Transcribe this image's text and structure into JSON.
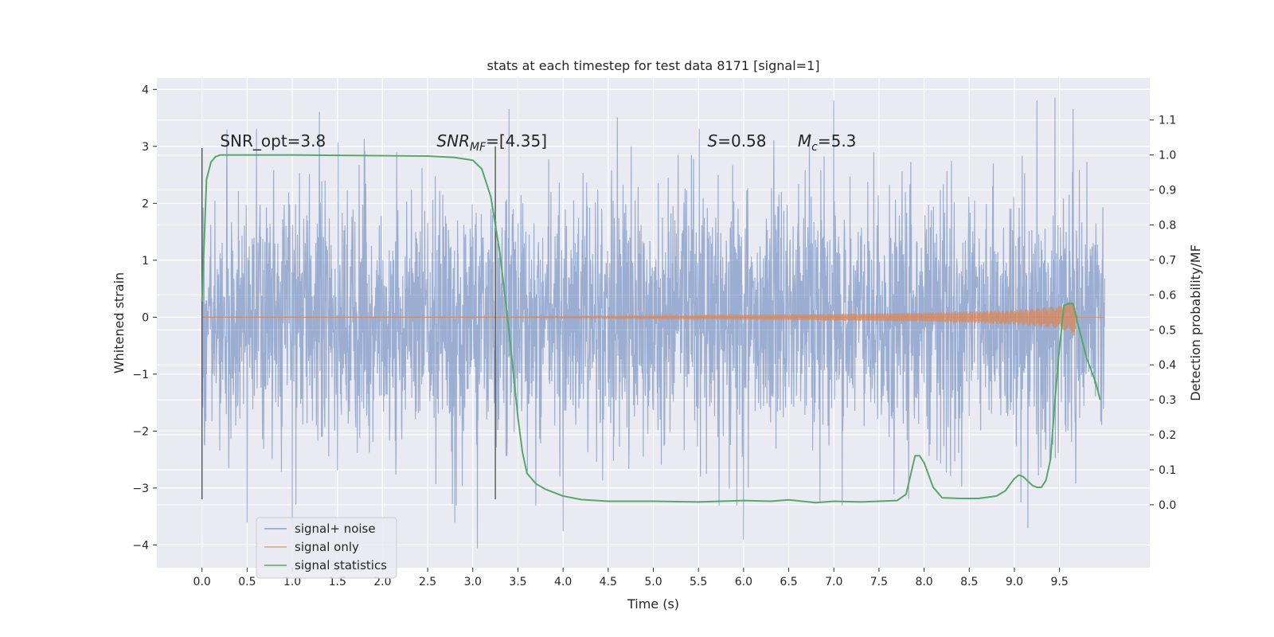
{
  "figure": {
    "background": "#ffffff",
    "axes_background": "#eaeaf2",
    "grid_color": "#ffffff"
  },
  "chart_data": {
    "type": "line",
    "title": "stats at each timestep for test data 8171 [signal=1]",
    "xlabel": "Time (s)",
    "ylabel": "Whitened strain",
    "y2label": "Detection probability/MF",
    "xlim": [
      -0.5,
      10.5
    ],
    "ylim": [
      -4.4,
      4.2
    ],
    "y2lim": [
      -0.18,
      1.22
    ],
    "xticks": [
      0.0,
      0.5,
      1.0,
      1.5,
      2.0,
      2.5,
      3.0,
      3.5,
      4.0,
      4.5,
      5.0,
      5.5,
      6.0,
      6.5,
      7.0,
      7.5,
      8.0,
      8.5,
      9.0,
      9.5
    ],
    "yticks": [
      -4,
      -3,
      -2,
      -1,
      0,
      1,
      2,
      3,
      4
    ],
    "y2ticks": [
      0.0,
      0.1,
      0.2,
      0.3,
      0.4,
      0.5,
      0.6,
      0.7,
      0.8,
      0.9,
      1.0,
      1.1
    ],
    "grid": true,
    "legend_position": "lower-left",
    "annotations": [
      {
        "text": "SNR_opt=3.8",
        "x": 0.2,
        "y": 3.0
      },
      {
        "text_main": "SNR",
        "text_sub": "MF",
        "text_rest": "=[4.35]",
        "x": 2.6,
        "y": 3.0
      },
      {
        "text_main": "S",
        "text_rest": "=0.58",
        "x": 5.6,
        "y": 3.0
      },
      {
        "text_main": "M",
        "text_sub": "c",
        "text_rest": "=5.3",
        "x": 6.6,
        "y": 3.0
      }
    ],
    "vlines": [
      {
        "x": 0.0,
        "ymin": -3.2,
        "ymax": 2.97
      },
      {
        "x": 3.25,
        "ymin": -3.2,
        "ymax": 3.0
      }
    ],
    "series": [
      {
        "name": "signal+ noise",
        "color": "#4c72b0",
        "axis": "left",
        "x_range": [
          0.0,
          10.0
        ],
        "noise_sigma": 1.1,
        "x_peaks": [
          1.3,
          3.4,
          4.6,
          7.0,
          9.25,
          9.45,
          9.65
        ],
        "y_peaks": [
          3.6,
          3.65,
          3.5,
          3.8,
          3.8,
          3.85,
          3.65
        ],
        "x_troughs": [
          0.5,
          1.0,
          2.8,
          3.05,
          4.0,
          6.0,
          9.15
        ],
        "y_troughs": [
          -3.6,
          -3.7,
          -3.6,
          -4.05,
          -3.75,
          -3.9,
          -3.7
        ]
      },
      {
        "name": "signal only",
        "color": "#dd8452",
        "axis": "left",
        "x_range": [
          0.0,
          9.7
        ],
        "envelope_x": [
          0.0,
          3.0,
          5.0,
          7.0,
          8.0,
          9.0,
          9.5,
          9.62,
          9.66,
          9.7
        ],
        "envelope_amp": [
          0.0,
          0.0,
          0.03,
          0.06,
          0.08,
          0.13,
          0.2,
          0.28,
          0.35,
          0.0
        ]
      },
      {
        "name": "signal statistics",
        "color": "#55a868",
        "axis": "right",
        "x": [
          0.0,
          0.05,
          0.1,
          0.15,
          0.2,
          0.3,
          0.5,
          1.0,
          1.5,
          2.0,
          2.5,
          2.8,
          3.0,
          3.1,
          3.2,
          3.3,
          3.4,
          3.5,
          3.55,
          3.6,
          3.7,
          3.8,
          4.0,
          4.2,
          4.5,
          5.0,
          5.5,
          6.0,
          6.3,
          6.5,
          6.8,
          7.0,
          7.3,
          7.5,
          7.7,
          7.8,
          7.9,
          7.95,
          8.0,
          8.1,
          8.2,
          8.4,
          8.6,
          8.8,
          8.9,
          9.0,
          9.05,
          9.1,
          9.2,
          9.25,
          9.3,
          9.35,
          9.4,
          9.45,
          9.5,
          9.55,
          9.6,
          9.65,
          9.7,
          9.8,
          9.9,
          9.95
        ],
        "y": [
          0.58,
          0.93,
          0.98,
          0.995,
          1.0,
          1.0,
          1.0,
          1.0,
          0.999,
          0.998,
          0.997,
          0.993,
          0.985,
          0.96,
          0.88,
          0.72,
          0.5,
          0.25,
          0.15,
          0.09,
          0.06,
          0.045,
          0.025,
          0.015,
          0.01,
          0.01,
          0.008,
          0.012,
          0.01,
          0.014,
          0.006,
          0.01,
          0.008,
          0.01,
          0.012,
          0.03,
          0.14,
          0.14,
          0.12,
          0.05,
          0.02,
          0.018,
          0.018,
          0.025,
          0.04,
          0.075,
          0.085,
          0.08,
          0.055,
          0.05,
          0.05,
          0.07,
          0.13,
          0.3,
          0.45,
          0.57,
          0.575,
          0.575,
          0.52,
          0.42,
          0.35,
          0.3
        ]
      }
    ]
  }
}
